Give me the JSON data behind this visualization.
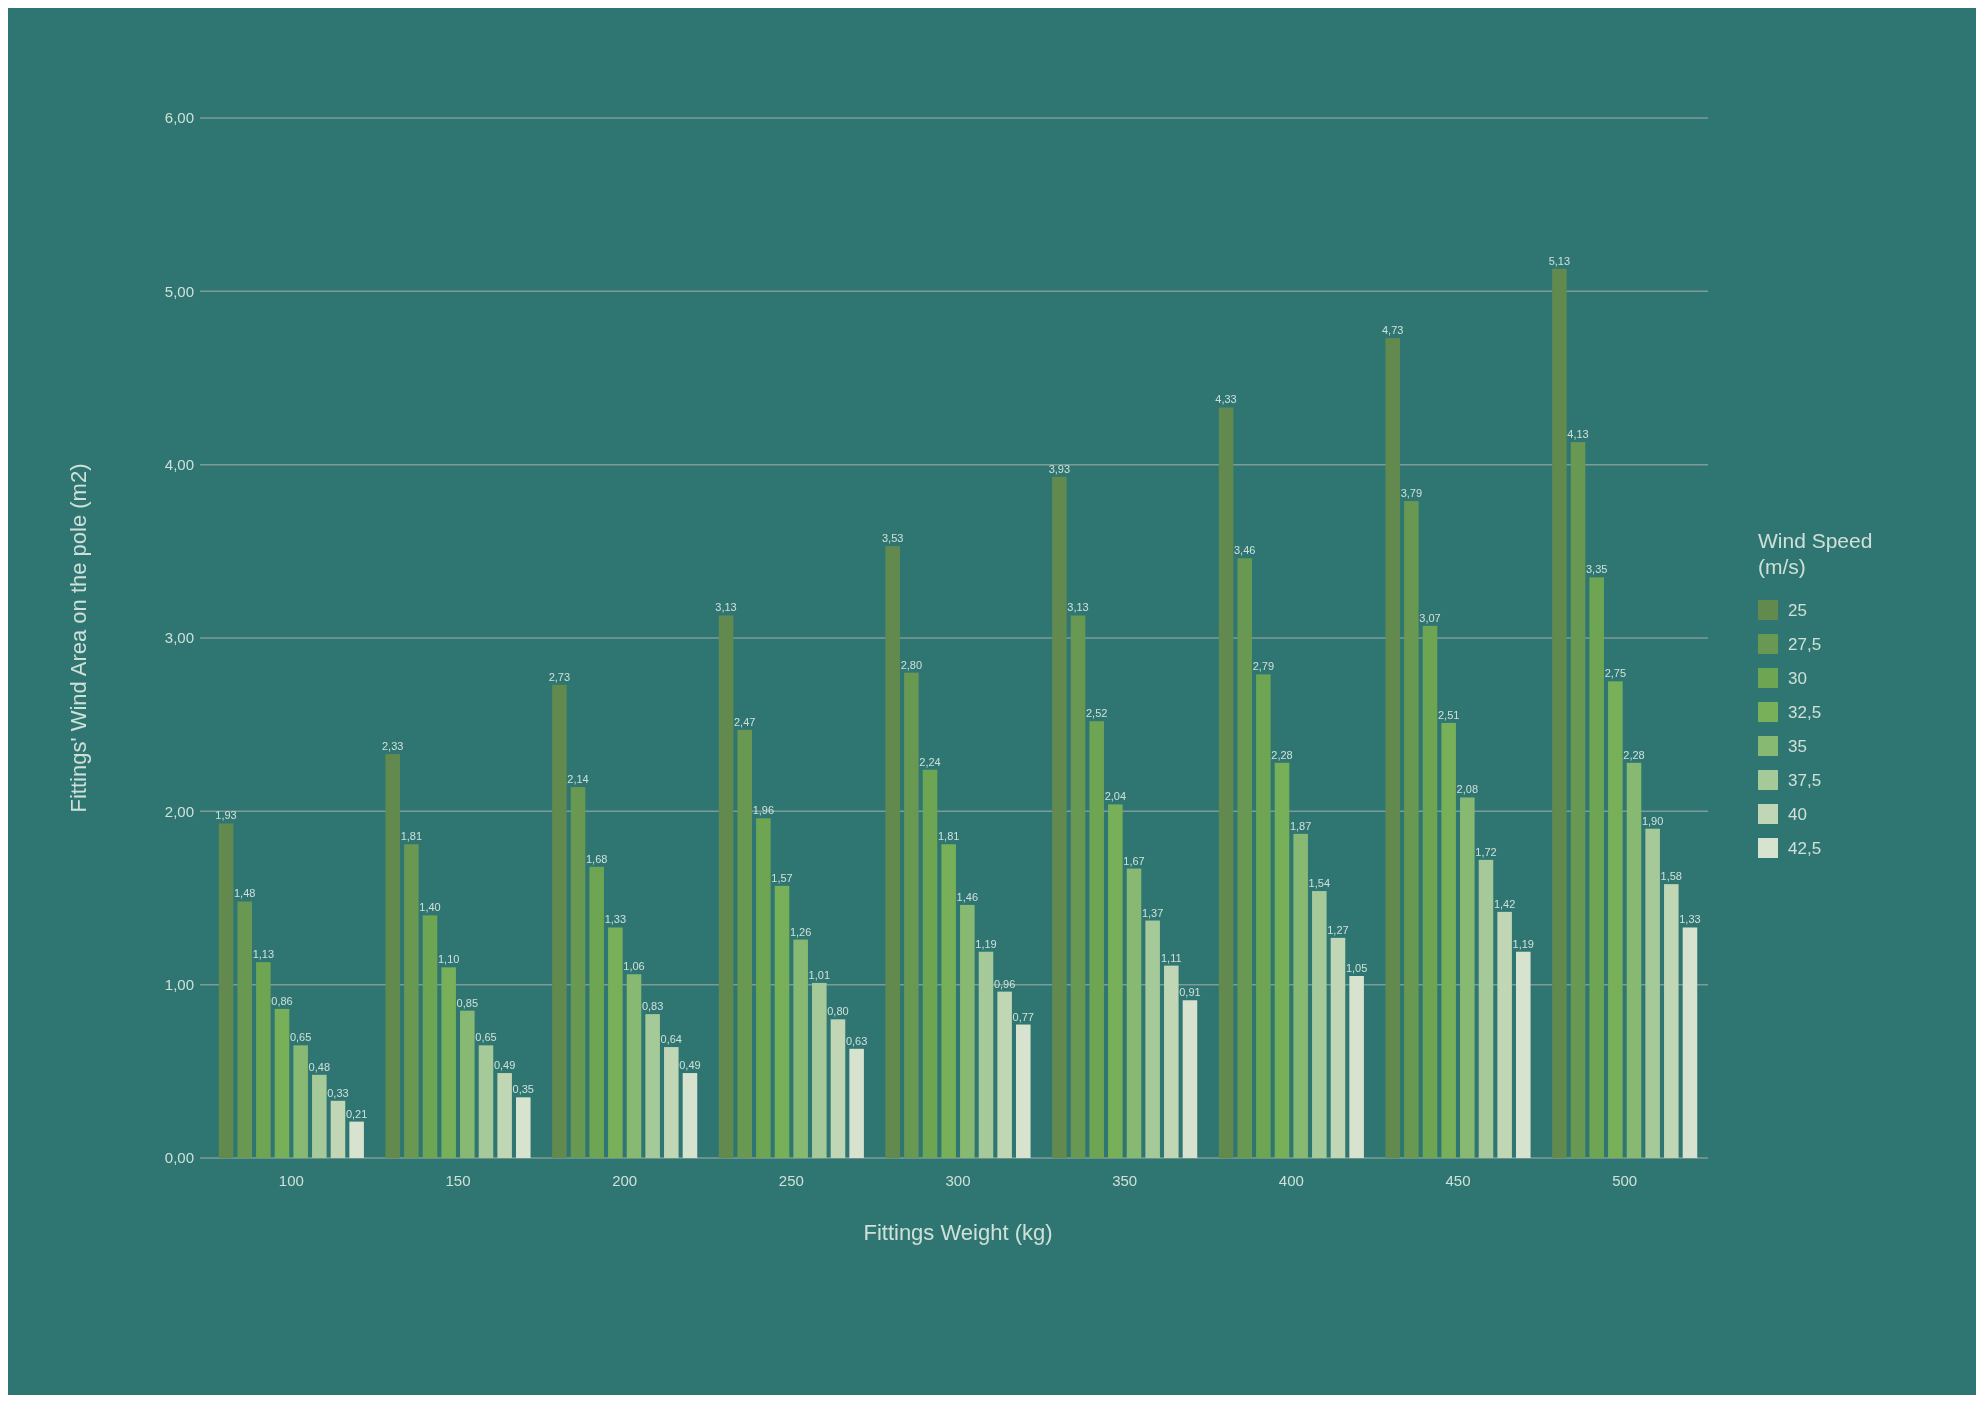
{
  "chart_data": {
    "type": "bar",
    "xlabel": "Fittings Weight (kg)",
    "ylabel": "Fittings' Wind Area on the pole (m2)",
    "legend_title": "Wind Speed (m/s)",
    "categories": [
      "100",
      "150",
      "200",
      "250",
      "300",
      "350",
      "400",
      "450",
      "500"
    ],
    "ylim": [
      0,
      6
    ],
    "yticks": [
      {
        "value": 0,
        "label": "0,00"
      },
      {
        "value": 1,
        "label": "1,00"
      },
      {
        "value": 2,
        "label": "2,00"
      },
      {
        "value": 3,
        "label": "3,00"
      },
      {
        "value": 4,
        "label": "4,00"
      },
      {
        "value": 5,
        "label": "5,00"
      },
      {
        "value": 6,
        "label": "6,00"
      }
    ],
    "grid": "y",
    "legend": "right",
    "series": [
      {
        "name": "25",
        "color": "#628a4f",
        "values": [
          1.93,
          2.33,
          2.73,
          3.13,
          3.53,
          3.93,
          4.33,
          4.73,
          5.13
        ],
        "value_labels": [
          "1,93",
          "2,33",
          "2,73",
          "3,13",
          "3,53",
          "3,93",
          "4,33",
          "4,73",
          "5,13"
        ]
      },
      {
        "name": "27,5",
        "color": "#689852",
        "values": [
          1.48,
          1.81,
          2.14,
          2.47,
          2.8,
          3.13,
          3.46,
          3.79,
          4.13
        ],
        "value_labels": [
          "1,48",
          "1,81",
          "2,14",
          "2,47",
          "2,80",
          "3,13",
          "3,46",
          "3,79",
          "4,13"
        ]
      },
      {
        "name": "30",
        "color": "#6ea553",
        "values": [
          1.13,
          1.4,
          1.68,
          1.96,
          2.24,
          2.52,
          2.79,
          3.07,
          3.35
        ],
        "value_labels": [
          "1,13",
          "1,40",
          "1,68",
          "1,96",
          "2,24",
          "2,52",
          "2,79",
          "3,07",
          "3,35"
        ]
      },
      {
        "name": "32,5",
        "color": "#78b05a",
        "values": [
          0.86,
          1.1,
          1.33,
          1.57,
          1.81,
          2.04,
          2.28,
          2.51,
          2.75
        ],
        "value_labels": [
          "0,86",
          "1,10",
          "1,33",
          "1,57",
          "1,81",
          "2,04",
          "2,28",
          "2,51",
          "2,75"
        ]
      },
      {
        "name": "35",
        "color": "#88b972",
        "values": [
          0.65,
          0.85,
          1.06,
          1.26,
          1.46,
          1.67,
          1.87,
          2.08,
          2.28
        ],
        "value_labels": [
          "0,65",
          "0,85",
          "1,06",
          "1,26",
          "1,46",
          "1,67",
          "1,87",
          "2,08",
          "2,28"
        ]
      },
      {
        "name": "37,5",
        "color": "#a6c99a",
        "values": [
          0.48,
          0.65,
          0.83,
          1.01,
          1.19,
          1.37,
          1.54,
          1.72,
          1.9
        ],
        "value_labels": [
          "0,48",
          "0,65",
          "0,83",
          "1,01",
          "1,19",
          "1,37",
          "1,54",
          "1,72",
          "1,90"
        ]
      },
      {
        "name": "40",
        "color": "#c0d6b4",
        "values": [
          0.33,
          0.49,
          0.64,
          0.8,
          0.96,
          1.11,
          1.27,
          1.42,
          1.58
        ],
        "value_labels": [
          "0,33",
          "0,49",
          "0,64",
          "0,80",
          "0,96",
          "1,11",
          "1,27",
          "1,42",
          "1,58"
        ]
      },
      {
        "name": "42,5",
        "color": "#d8e3cf",
        "values": [
          0.21,
          0.35,
          0.49,
          0.63,
          0.77,
          0.91,
          1.05,
          1.19,
          1.33
        ],
        "value_labels": [
          "0,21",
          "0,35",
          "0,49",
          "0,63",
          "0,77",
          "0,91",
          "1,05",
          "1,19",
          "1,33"
        ]
      }
    ]
  }
}
